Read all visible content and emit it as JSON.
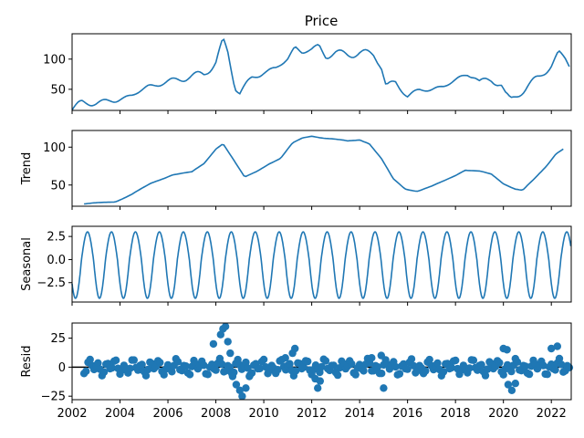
{
  "chart_data": [
    {
      "type": "line",
      "title": "Price",
      "ylabel": "",
      "xlim": [
        2002.0,
        2022.83
      ],
      "ylim": [
        15,
        142
      ],
      "yticks": [
        50,
        100
      ],
      "knots": [
        [
          2002.0,
          17
        ],
        [
          2002.4,
          27
        ],
        [
          2003.0,
          28
        ],
        [
          2003.8,
          31
        ],
        [
          2004.5,
          40
        ],
        [
          2005.2,
          55
        ],
        [
          2006.0,
          62
        ],
        [
          2006.8,
          70
        ],
        [
          2007.5,
          75
        ],
        [
          2008.0,
          95
        ],
        [
          2008.3,
          130
        ],
        [
          2008.5,
          110
        ],
        [
          2008.8,
          55
        ],
        [
          2009.0,
          45
        ],
        [
          2009.5,
          68
        ],
        [
          2010.0,
          78
        ],
        [
          2010.5,
          85
        ],
        [
          2011.0,
          100
        ],
        [
          2011.3,
          120
        ],
        [
          2011.6,
          112
        ],
        [
          2012.0,
          115
        ],
        [
          2012.3,
          122
        ],
        [
          2012.6,
          105
        ],
        [
          2013.0,
          110
        ],
        [
          2013.5,
          108
        ],
        [
          2014.0,
          110
        ],
        [
          2014.6,
          108
        ],
        [
          2014.9,
          90
        ],
        [
          2015.1,
          55
        ],
        [
          2015.5,
          60
        ],
        [
          2016.0,
          40
        ],
        [
          2016.5,
          48
        ],
        [
          2017.0,
          50
        ],
        [
          2017.5,
          55
        ],
        [
          2018.0,
          65
        ],
        [
          2018.5,
          75
        ],
        [
          2018.8,
          72
        ],
        [
          2019.0,
          62
        ],
        [
          2019.5,
          65
        ],
        [
          2019.9,
          60
        ],
        [
          2020.1,
          40
        ],
        [
          2020.3,
          30
        ],
        [
          2020.7,
          45
        ],
        [
          2021.0,
          55
        ],
        [
          2021.5,
          70
        ],
        [
          2022.0,
          90
        ],
        [
          2022.3,
          110
        ],
        [
          2022.6,
          100
        ],
        [
          2022.83,
          85
        ]
      ]
    },
    {
      "type": "line",
      "title": "",
      "ylabel": "Trend",
      "xlim": [
        2002.0,
        2022.83
      ],
      "ylim": [
        22,
        122
      ],
      "yticks": [
        50,
        100
      ],
      "knots": [
        [
          2002.5,
          25
        ],
        [
          2003.0,
          26
        ],
        [
          2003.8,
          28
        ],
        [
          2004.5,
          38
        ],
        [
          2005.3,
          52
        ],
        [
          2006.2,
          64
        ],
        [
          2007.0,
          67
        ],
        [
          2007.5,
          78
        ],
        [
          2008.0,
          98
        ],
        [
          2008.3,
          105
        ],
        [
          2008.7,
          85
        ],
        [
          2009.2,
          60
        ],
        [
          2009.7,
          68
        ],
        [
          2010.2,
          78
        ],
        [
          2010.7,
          85
        ],
        [
          2011.2,
          105
        ],
        [
          2011.6,
          112
        ],
        [
          2012.0,
          115
        ],
        [
          2012.5,
          112
        ],
        [
          2013.0,
          110
        ],
        [
          2013.5,
          108
        ],
        [
          2014.0,
          110
        ],
        [
          2014.4,
          105
        ],
        [
          2014.9,
          85
        ],
        [
          2015.4,
          58
        ],
        [
          2015.9,
          45
        ],
        [
          2016.4,
          42
        ],
        [
          2017.0,
          48
        ],
        [
          2017.5,
          55
        ],
        [
          2018.0,
          63
        ],
        [
          2018.4,
          70
        ],
        [
          2019.0,
          68
        ],
        [
          2019.5,
          64
        ],
        [
          2020.0,
          52
        ],
        [
          2020.5,
          45
        ],
        [
          2020.8,
          43
        ],
        [
          2021.3,
          58
        ],
        [
          2021.8,
          75
        ],
        [
          2022.2,
          92
        ],
        [
          2022.5,
          98
        ]
      ]
    },
    {
      "type": "line",
      "title": "",
      "ylabel": "Seasonal",
      "xlim": [
        2002.0,
        2022.83
      ],
      "ylim": [
        -4.6,
        3.6
      ],
      "yticks": [
        -2.5,
        0.0,
        2.5
      ],
      "ytick_labels": [
        "−2.5",
        "0.0",
        "2.5"
      ],
      "period_years": 1.0,
      "amplitude": 3.0,
      "min_value": -4.2
    },
    {
      "type": "scatter",
      "title": "",
      "ylabel": "Resid",
      "xlabel": "",
      "xlim": [
        2002.0,
        2022.83
      ],
      "ylim": [
        -28,
        38
      ],
      "yticks": [
        -25,
        0,
        25
      ],
      "ytick_labels": [
        "−25",
        "0",
        "25"
      ],
      "xticks": [
        2002,
        2004,
        2006,
        2008,
        2010,
        2012,
        2014,
        2016,
        2018,
        2020,
        2022
      ],
      "xtick_labels": [
        "2002",
        "2004",
        "2006",
        "2008",
        "2010",
        "2012",
        "2014",
        "2016",
        "2018",
        "2020",
        "2022"
      ],
      "baseline": 0,
      "points": [
        [
          2007.9,
          20
        ],
        [
          2008.2,
          28
        ],
        [
          2008.3,
          33
        ],
        [
          2008.4,
          35
        ],
        [
          2008.5,
          22
        ],
        [
          2008.6,
          12
        ],
        [
          2008.7,
          -8
        ],
        [
          2008.85,
          -15
        ],
        [
          2009.0,
          -20
        ],
        [
          2009.1,
          -25
        ],
        [
          2009.25,
          -18
        ],
        [
          2009.4,
          -8
        ],
        [
          2010.2,
          -2
        ],
        [
          2010.9,
          8
        ],
        [
          2011.2,
          12
        ],
        [
          2011.3,
          16
        ],
        [
          2012.15,
          -10
        ],
        [
          2012.25,
          -18
        ],
        [
          2012.35,
          -12
        ],
        [
          2014.5,
          8
        ],
        [
          2014.9,
          10
        ],
        [
          2015.0,
          -18
        ],
        [
          2020.0,
          16
        ],
        [
          2020.15,
          15
        ],
        [
          2020.2,
          -15
        ],
        [
          2020.35,
          -20
        ],
        [
          2020.5,
          -14
        ],
        [
          2022.0,
          16
        ],
        [
          2022.25,
          18
        ]
      ]
    }
  ]
}
